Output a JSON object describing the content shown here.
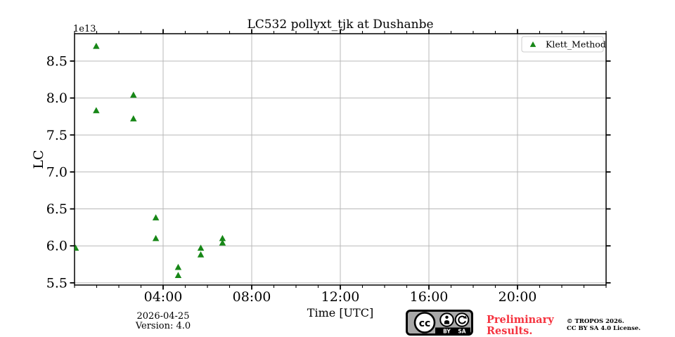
{
  "window": {
    "background": "#ffffff"
  },
  "chart_data": {
    "type": "scatter",
    "title": "LC532 pollyxt_tjk at Dushanbe",
    "xlabel": "Time [UTC]",
    "ylabel": "LC",
    "y_offset_text": "1e13",
    "xlim_hours": [
      0,
      24
    ],
    "ylim_1e13": [
      5.47,
      8.87
    ],
    "x_major_ticks": [
      {
        "hours": 4,
        "label": "04:00"
      },
      {
        "hours": 8,
        "label": "08:00"
      },
      {
        "hours": 12,
        "label": "12:00"
      },
      {
        "hours": 16,
        "label": "16:00"
      },
      {
        "hours": 20,
        "label": "20:00"
      }
    ],
    "x_minor_tick_interval_hours": 1,
    "y_ticks": [
      {
        "value": 5.5,
        "label": "5.5"
      },
      {
        "value": 6.0,
        "label": "6.0"
      },
      {
        "value": 6.5,
        "label": "6.5"
      },
      {
        "value": 7.0,
        "label": "7.0"
      },
      {
        "value": 7.5,
        "label": "7.5"
      },
      {
        "value": 8.0,
        "label": "8.0"
      },
      {
        "value": 8.5,
        "label": "8.5"
      }
    ],
    "grid": true,
    "grid_color": "#b8b8b8",
    "legend": {
      "label": "Klett_Method",
      "position": "upper right",
      "marker": "triangle-up"
    },
    "series": [
      {
        "name": "Klett_Method",
        "marker": "triangle-up",
        "color": "#178717",
        "points": [
          {
            "time": "00:03",
            "hours": 0.05,
            "lc_1e13": 5.97
          },
          {
            "time": "00:59",
            "hours": 0.98,
            "lc_1e13": 8.7
          },
          {
            "time": "00:59",
            "hours": 0.98,
            "lc_1e13": 7.83
          },
          {
            "time": "02:40",
            "hours": 2.66,
            "lc_1e13": 8.04
          },
          {
            "time": "02:40",
            "hours": 2.66,
            "lc_1e13": 7.72
          },
          {
            "time": "03:40",
            "hours": 3.67,
            "lc_1e13": 6.38
          },
          {
            "time": "03:40",
            "hours": 3.67,
            "lc_1e13": 6.1
          },
          {
            "time": "04:41",
            "hours": 4.68,
            "lc_1e13": 5.71
          },
          {
            "time": "04:41",
            "hours": 4.68,
            "lc_1e13": 5.6
          },
          {
            "time": "05:42",
            "hours": 5.7,
            "lc_1e13": 5.97
          },
          {
            "time": "05:42",
            "hours": 5.7,
            "lc_1e13": 5.88
          },
          {
            "time": "06:41",
            "hours": 6.68,
            "lc_1e13": 6.1
          },
          {
            "time": "06:41",
            "hours": 6.68,
            "lc_1e13": 6.04
          }
        ]
      }
    ]
  },
  "footer": {
    "date": "2026-04-25",
    "version": "Version: 4.0",
    "preliminary_lines": [
      "Preliminary",
      "Results."
    ],
    "preliminary_color": "#f5333f",
    "copyright_lines": [
      "© TROPOS 2026.",
      "CC BY SA 4.0 License."
    ],
    "cc_badge": {
      "labels": [
        "BY",
        "SA"
      ],
      "cc_text": "cc"
    }
  }
}
